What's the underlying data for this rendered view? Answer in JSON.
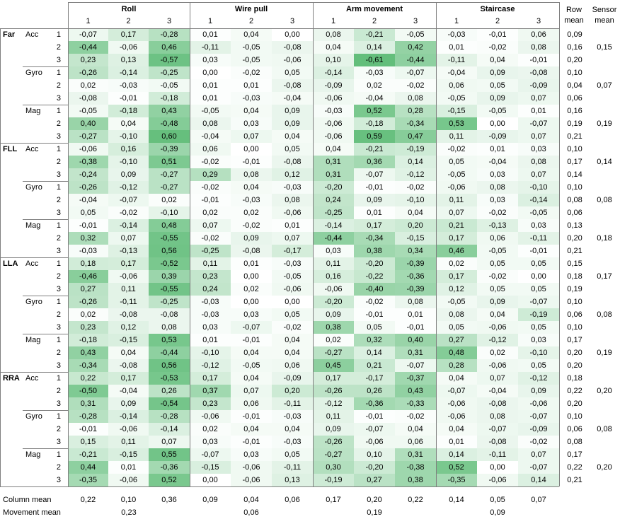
{
  "header": {
    "movements": [
      "Roll",
      "Wire pull",
      "Arm movement",
      "Staircase"
    ],
    "sub_labels": [
      "1",
      "2",
      "3"
    ],
    "row_mean": "Row mean",
    "sensor_mean": "Sensor mean"
  },
  "positions": [
    {
      "label": "Far",
      "sensors": [
        {
          "label": "Acc",
          "sensor_mean": "0,15",
          "rows": [
            {
              "n": "1",
              "vals": [
                "-0,07",
                "0,17",
                "-0,28",
                "0,01",
                "0,04",
                "0,00",
                "0,08",
                "-0,21",
                "-0,05",
                "-0,03",
                "-0,01",
                "0,06"
              ],
              "row_mean": "0,09"
            },
            {
              "n": "2",
              "vals": [
                "-0,44",
                "-0,06",
                "0,46",
                "-0,11",
                "-0,05",
                "-0,08",
                "0,04",
                "0,14",
                "0,42",
                "0,01",
                "-0,02",
                "0,08"
              ],
              "row_mean": "0,16"
            },
            {
              "n": "3",
              "vals": [
                "0,23",
                "0,13",
                "-0,57",
                "0,03",
                "-0,05",
                "-0,06",
                "0,10",
                "-0,61",
                "-0,44",
                "-0,11",
                "0,04",
                "-0,01"
              ],
              "row_mean": "0,20"
            }
          ]
        },
        {
          "label": "Gyro",
          "sensor_mean": "0,07",
          "rows": [
            {
              "n": "1",
              "vals": [
                "-0,26",
                "-0,14",
                "-0,25",
                "0,00",
                "-0,02",
                "0,05",
                "-0,14",
                "-0,03",
                "-0,07",
                "-0,04",
                "0,09",
                "-0,08"
              ],
              "row_mean": "0,10"
            },
            {
              "n": "2",
              "vals": [
                "0,02",
                "-0,03",
                "-0,05",
                "0,01",
                "0,01",
                "-0,08",
                "-0,09",
                "0,02",
                "-0,02",
                "0,06",
                "0,05",
                "-0,09"
              ],
              "row_mean": "0,04"
            },
            {
              "n": "3",
              "vals": [
                "-0,08",
                "-0,01",
                "-0,18",
                "0,01",
                "-0,03",
                "-0,04",
                "-0,06",
                "-0,04",
                "0,08",
                "-0,05",
                "0,09",
                "0,07"
              ],
              "row_mean": "0,06"
            }
          ]
        },
        {
          "label": "Mag",
          "sensor_mean": "0,19",
          "rows": [
            {
              "n": "1",
              "vals": [
                "-0,05",
                "-0,18",
                "0,43",
                "-0,05",
                "0,04",
                "0,09",
                "-0,03",
                "0,52",
                "0,28",
                "-0,15",
                "-0,05",
                "0,01"
              ],
              "row_mean": "0,16"
            },
            {
              "n": "2",
              "vals": [
                "0,40",
                "0,04",
                "-0,48",
                "0,08",
                "0,03",
                "0,09",
                "-0,06",
                "-0,18",
                "-0,34",
                "0,53",
                "0,00",
                "-0,07"
              ],
              "row_mean": "0,19"
            },
            {
              "n": "3",
              "vals": [
                "-0,27",
                "-0,10",
                "0,60",
                "-0,04",
                "0,07",
                "0,04",
                "-0,06",
                "0,59",
                "0,47",
                "0,11",
                "-0,09",
                "0,07"
              ],
              "row_mean": "0,21"
            }
          ]
        }
      ]
    },
    {
      "label": "FLL",
      "sensors": [
        {
          "label": "Acc",
          "sensor_mean": "0,14",
          "rows": [
            {
              "n": "1",
              "vals": [
                "-0,06",
                "0,16",
                "-0,39",
                "0,06",
                "0,00",
                "0,05",
                "0,04",
                "-0,21",
                "-0,19",
                "-0,02",
                "0,01",
                "0,03"
              ],
              "row_mean": "0,10"
            },
            {
              "n": "2",
              "vals": [
                "-0,38",
                "-0,10",
                "0,51",
                "-0,02",
                "-0,01",
                "-0,08",
                "0,31",
                "0,36",
                "0,14",
                "0,05",
                "-0,04",
                "0,08"
              ],
              "row_mean": "0,17"
            },
            {
              "n": "3",
              "vals": [
                "-0,24",
                "0,09",
                "-0,27",
                "0,29",
                "0,08",
                "0,12",
                "0,31",
                "-0,07",
                "-0,12",
                "-0,05",
                "0,03",
                "0,07"
              ],
              "row_mean": "0,14"
            }
          ]
        },
        {
          "label": "Gyro",
          "sensor_mean": "0,08",
          "rows": [
            {
              "n": "1",
              "vals": [
                "-0,26",
                "-0,12",
                "-0,27",
                "-0,02",
                "0,04",
                "-0,03",
                "-0,20",
                "-0,01",
                "-0,02",
                "-0,06",
                "0,08",
                "-0,10"
              ],
              "row_mean": "0,10"
            },
            {
              "n": "2",
              "vals": [
                "-0,04",
                "-0,07",
                "0,02",
                "-0,01",
                "-0,03",
                "0,08",
                "0,24",
                "0,09",
                "-0,10",
                "0,11",
                "0,03",
                "-0,14"
              ],
              "row_mean": "0,08"
            },
            {
              "n": "3",
              "vals": [
                "0,05",
                "-0,02",
                "-0,10",
                "0,02",
                "0,02",
                "-0,06",
                "-0,25",
                "0,01",
                "0,04",
                "0,07",
                "-0,02",
                "-0,05"
              ],
              "row_mean": "0,06"
            }
          ]
        },
        {
          "label": "Mag",
          "sensor_mean": "0,18",
          "rows": [
            {
              "n": "1",
              "vals": [
                "-0,01",
                "-0,14",
                "0,48",
                "0,07",
                "-0,02",
                "0,01",
                "-0,14",
                "0,17",
                "0,20",
                "0,21",
                "-0,13",
                "0,03"
              ],
              "row_mean": "0,13"
            },
            {
              "n": "2",
              "vals": [
                "0,32",
                "0,07",
                "-0,55",
                "-0,02",
                "0,09",
                "0,07",
                "-0,44",
                "-0,34",
                "-0,15",
                "0,17",
                "0,06",
                "-0,11"
              ],
              "row_mean": "0,20"
            },
            {
              "n": "3",
              "vals": [
                "-0,03",
                "-0,13",
                "0,56",
                "-0,25",
                "-0,08",
                "-0,17",
                "0,03",
                "0,38",
                "0,34",
                "0,46",
                "-0,05",
                "-0,01"
              ],
              "row_mean": "0,21"
            }
          ]
        }
      ]
    },
    {
      "label": "LLA",
      "sensors": [
        {
          "label": "Acc",
          "sensor_mean": "0,17",
          "rows": [
            {
              "n": "1",
              "vals": [
                "0,18",
                "0,17",
                "-0,52",
                "0,11",
                "0,01",
                "-0,03",
                "0,11",
                "-0,20",
                "-0,39",
                "0,02",
                "0,05",
                "0,05"
              ],
              "row_mean": "0,15"
            },
            {
              "n": "2",
              "vals": [
                "-0,46",
                "-0,06",
                "0,39",
                "0,23",
                "0,00",
                "-0,05",
                "0,16",
                "-0,22",
                "-0,36",
                "0,17",
                "-0,02",
                "0,00"
              ],
              "row_mean": "0,18"
            },
            {
              "n": "3",
              "vals": [
                "0,27",
                "0,11",
                "-0,55",
                "0,24",
                "0,02",
                "-0,06",
                "-0,06",
                "-0,40",
                "-0,39",
                "0,12",
                "0,05",
                "0,05"
              ],
              "row_mean": "0,19"
            }
          ]
        },
        {
          "label": "Gyro",
          "sensor_mean": "0,08",
          "rows": [
            {
              "n": "1",
              "vals": [
                "-0,26",
                "-0,11",
                "-0,25",
                "-0,03",
                "0,00",
                "0,00",
                "-0,20",
                "-0,02",
                "0,08",
                "-0,05",
                "0,09",
                "-0,07"
              ],
              "row_mean": "0,10"
            },
            {
              "n": "2",
              "vals": [
                "0,02",
                "-0,08",
                "-0,08",
                "-0,03",
                "0,03",
                "0,05",
                "0,09",
                "-0,01",
                "0,01",
                "0,08",
                "0,04",
                "-0,19"
              ],
              "row_mean": "0,06"
            },
            {
              "n": "3",
              "vals": [
                "0,23",
                "0,12",
                "0,08",
                "0,03",
                "-0,07",
                "-0,02",
                "0,38",
                "0,05",
                "-0,01",
                "0,05",
                "-0,06",
                "0,05"
              ],
              "row_mean": "0,10"
            }
          ]
        },
        {
          "label": "Mag",
          "sensor_mean": "0,19",
          "rows": [
            {
              "n": "1",
              "vals": [
                "-0,18",
                "-0,15",
                "0,53",
                "0,01",
                "-0,01",
                "0,04",
                "0,02",
                "0,32",
                "0,40",
                "0,27",
                "-0,12",
                "0,03"
              ],
              "row_mean": "0,17"
            },
            {
              "n": "2",
              "vals": [
                "0,43",
                "0,04",
                "-0,44",
                "-0,10",
                "0,04",
                "0,04",
                "-0,27",
                "0,14",
                "0,31",
                "0,48",
                "0,02",
                "-0,10"
              ],
              "row_mean": "0,20"
            },
            {
              "n": "3",
              "vals": [
                "-0,34",
                "-0,08",
                "0,56",
                "-0,12",
                "-0,05",
                "0,06",
                "0,45",
                "0,21",
                "-0,07",
                "0,28",
                "-0,06",
                "0,05"
              ],
              "row_mean": "0,20"
            }
          ]
        }
      ]
    },
    {
      "label": "RRA",
      "sensors": [
        {
          "label": "Acc",
          "sensor_mean": "0,20",
          "rows": [
            {
              "n": "1",
              "vals": [
                "0,22",
                "0,17",
                "-0,53",
                "0,17",
                "0,04",
                "-0,09",
                "0,17",
                "-0,17",
                "-0,37",
                "0,04",
                "0,07",
                "-0,12"
              ],
              "row_mean": "0,18"
            },
            {
              "n": "2",
              "vals": [
                "-0,50",
                "-0,04",
                "0,26",
                "0,37",
                "0,07",
                "0,20",
                "-0,26",
                "0,26",
                "0,43",
                "-0,07",
                "-0,04",
                "0,09"
              ],
              "row_mean": "0,22"
            },
            {
              "n": "3",
              "vals": [
                "0,31",
                "0,09",
                "-0,54",
                "0,23",
                "0,06",
                "-0,11",
                "-0,12",
                "-0,36",
                "-0,33",
                "-0,06",
                "-0,08",
                "-0,06"
              ],
              "row_mean": "0,20"
            }
          ]
        },
        {
          "label": "Gyro",
          "sensor_mean": "0,08",
          "rows": [
            {
              "n": "1",
              "vals": [
                "-0,28",
                "-0,14",
                "-0,28",
                "-0,06",
                "-0,01",
                "-0,03",
                "0,11",
                "-0,01",
                "-0,02",
                "-0,06",
                "0,08",
                "-0,07"
              ],
              "row_mean": "0,10"
            },
            {
              "n": "2",
              "vals": [
                "-0,01",
                "-0,06",
                "-0,14",
                "0,02",
                "0,04",
                "0,04",
                "0,09",
                "-0,07",
                "0,04",
                "0,04",
                "-0,07",
                "-0,09"
              ],
              "row_mean": "0,06"
            },
            {
              "n": "3",
              "vals": [
                "0,15",
                "0,11",
                "0,07",
                "0,03",
                "-0,01",
                "-0,03",
                "-0,26",
                "-0,06",
                "0,06",
                "0,01",
                "-0,08",
                "-0,02"
              ],
              "row_mean": "0,08"
            }
          ]
        },
        {
          "label": "Mag",
          "sensor_mean": "0,20",
          "rows": [
            {
              "n": "1",
              "vals": [
                "-0,21",
                "-0,15",
                "0,55",
                "-0,07",
                "0,03",
                "0,05",
                "-0,27",
                "0,10",
                "0,31",
                "0,14",
                "-0,11",
                "0,07"
              ],
              "row_mean": "0,17"
            },
            {
              "n": "2",
              "vals": [
                "0,44",
                "0,01",
                "-0,36",
                "-0,15",
                "-0,06",
                "-0,11",
                "0,30",
                "-0,20",
                "-0,38",
                "0,52",
                "0,00",
                "-0,07"
              ],
              "row_mean": "0,22"
            },
            {
              "n": "3",
              "vals": [
                "-0,35",
                "-0,06",
                "0,52",
                "0,00",
                "-0,06",
                "0,13",
                "-0,19",
                "0,27",
                "0,38",
                "-0,35",
                "-0,06",
                "0,14"
              ],
              "row_mean": "0,21"
            }
          ]
        }
      ]
    }
  ],
  "footer": {
    "column_mean_label": "Column mean",
    "column_means": [
      "0,22",
      "0,10",
      "0,36",
      "0,09",
      "0,04",
      "0,06",
      "0,17",
      "0,20",
      "0,22",
      "0,14",
      "0,05",
      "0,07"
    ],
    "movement_mean_label": "Movement mean",
    "movement_means": [
      "0,23",
      "0,06",
      "0,19",
      "0,09"
    ]
  },
  "colors": {
    "heat_low": "#ffffff",
    "heat_high": "#63be7b",
    "grid_line": "#7f7f7f"
  }
}
